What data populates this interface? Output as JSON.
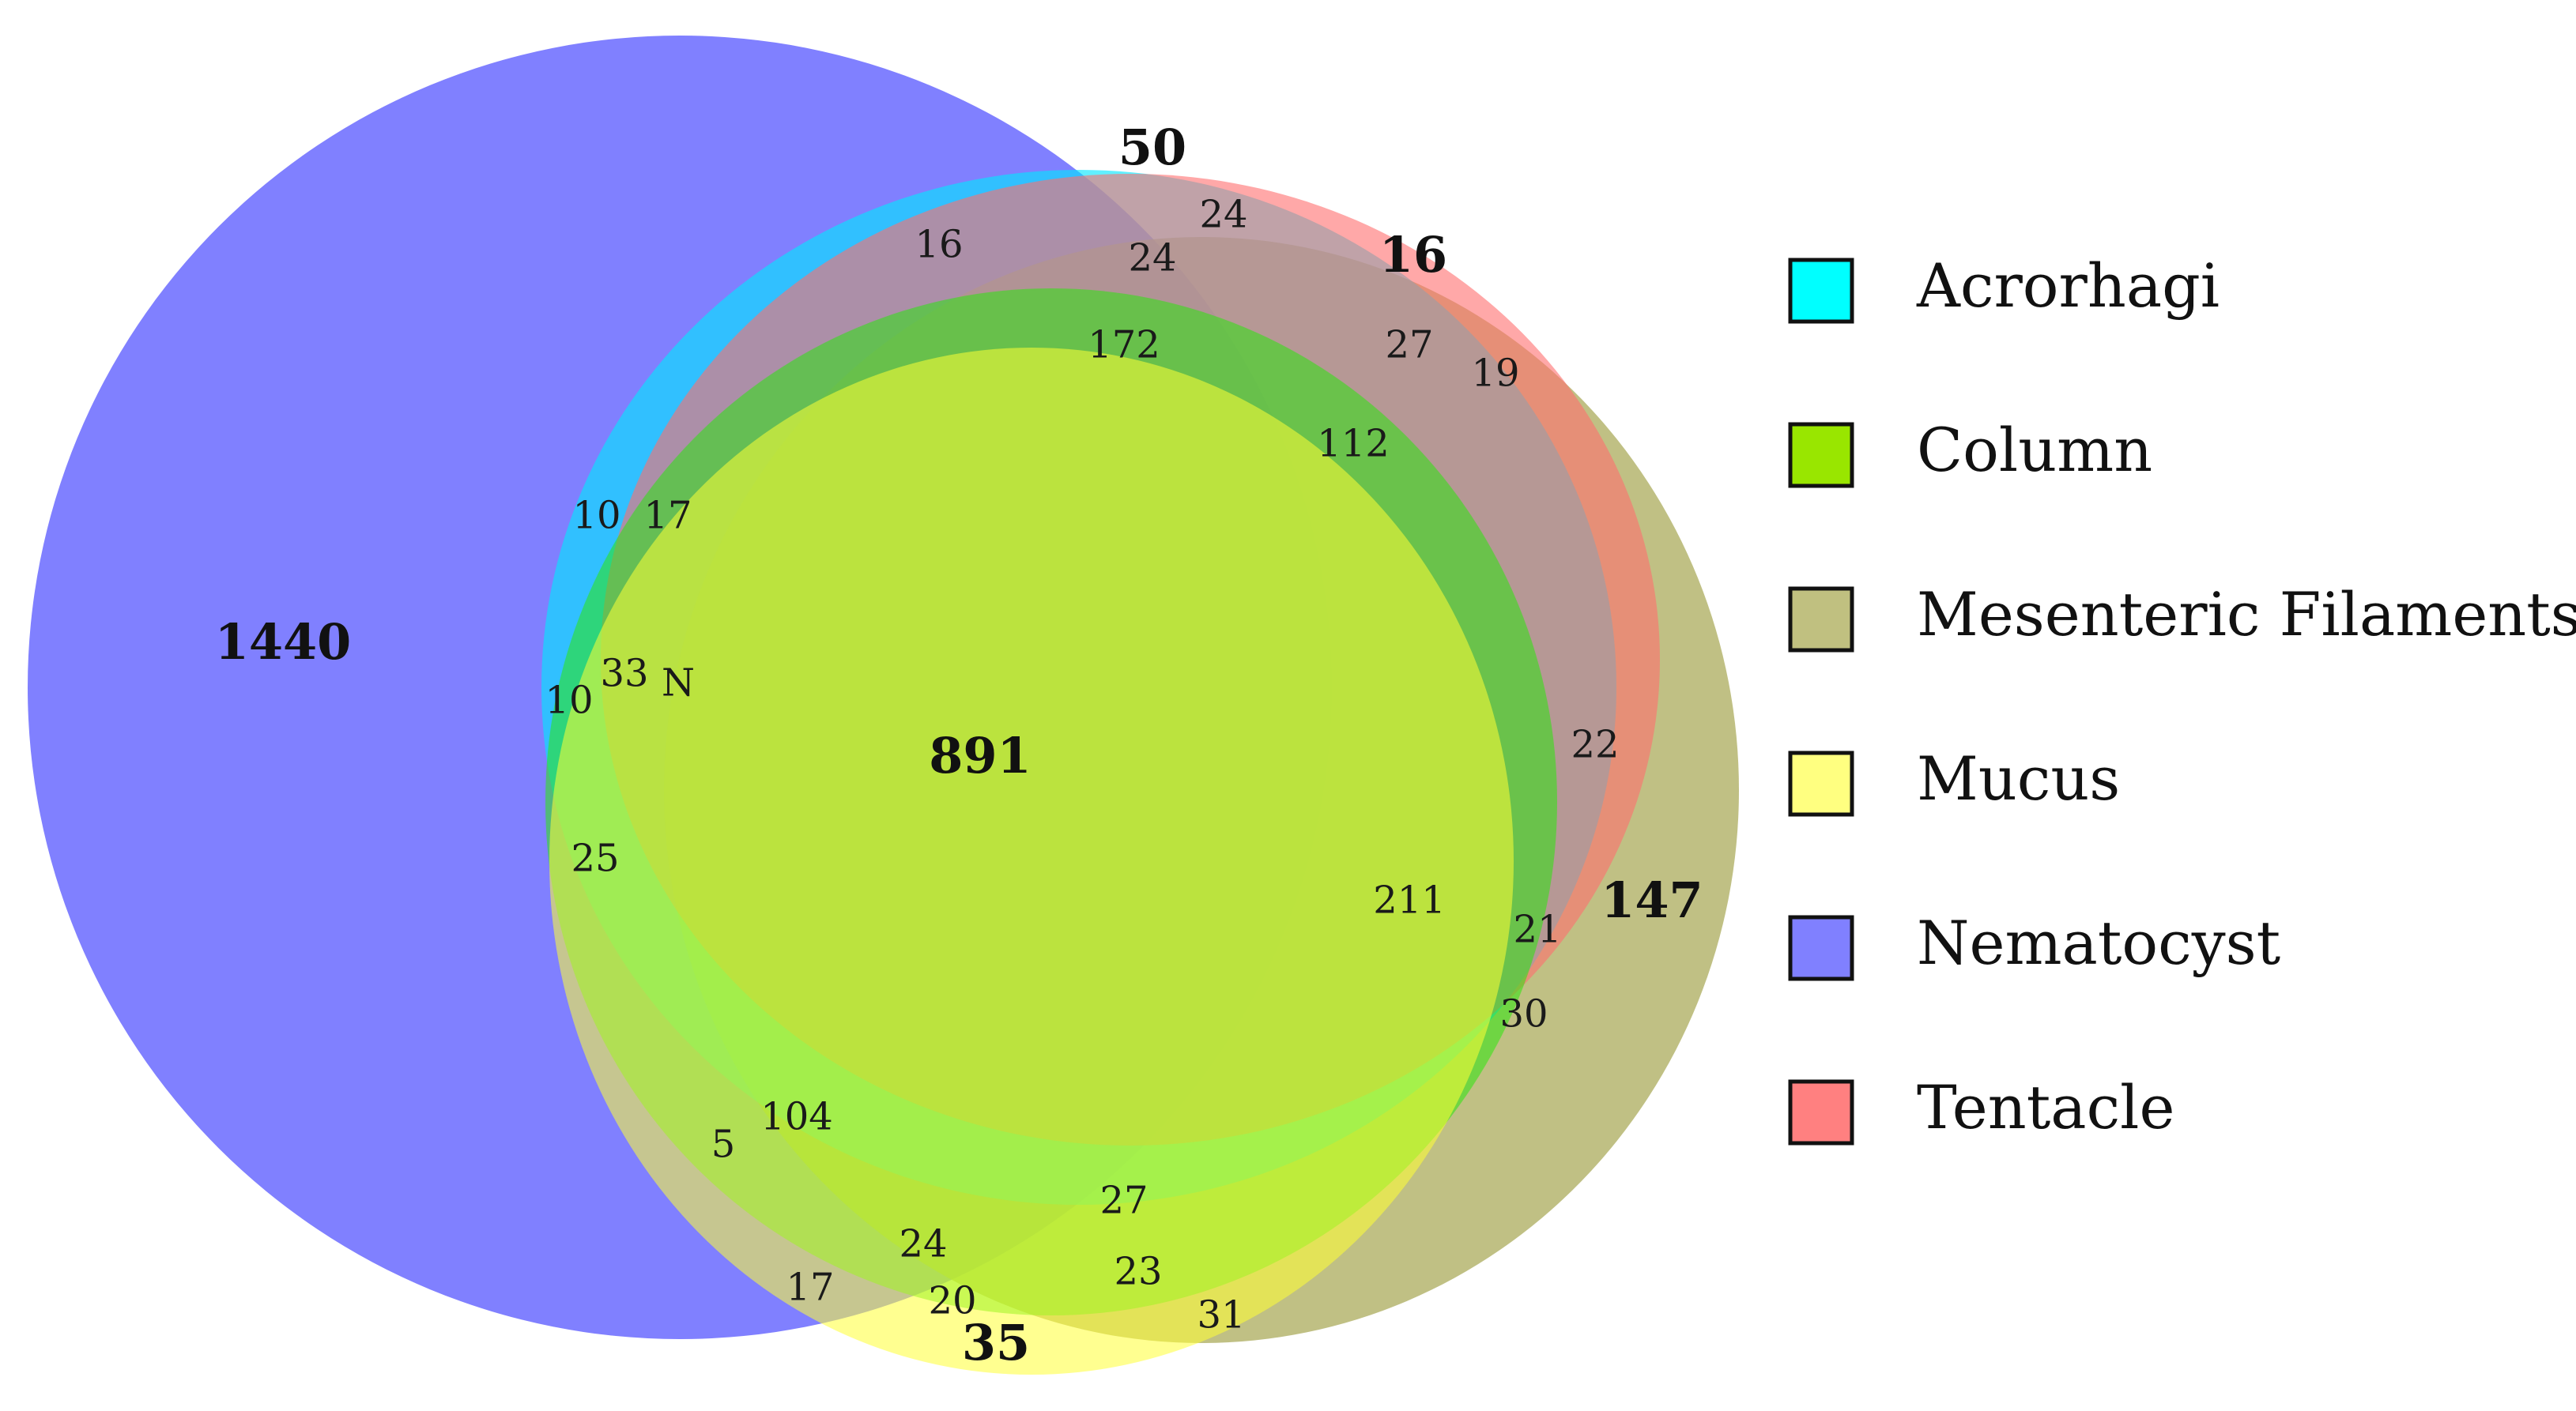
{
  "sets": [
    {
      "key": "nematocyst",
      "label": "Nematocyst",
      "color": "#8080ff",
      "opacity": 1.0
    },
    {
      "key": "mesenteric",
      "label": "Mesenteric Filaments",
      "color": "#a8a855",
      "opacity": 0.72
    },
    {
      "key": "acrorhagi",
      "label": "Acrorhagi",
      "color": "#00e6ff",
      "opacity": 0.62
    },
    {
      "key": "tentacle",
      "label": "Tentacle",
      "color": "#ff6e6e",
      "opacity": 0.6
    },
    {
      "key": "column",
      "label": "Column",
      "color": "#2ce60e",
      "opacity": 0.55
    },
    {
      "key": "mucus",
      "label": "Mucus",
      "color": "#ffff35",
      "opacity": 0.55
    }
  ],
  "legend": [
    {
      "label": "Acrorhagi",
      "color": "#00ffff"
    },
    {
      "label": "Column",
      "color": "#99e600"
    },
    {
      "label": "Mesenteric Filaments",
      "color": "#c0c080"
    },
    {
      "label": "Mucus",
      "color": "#ffff80"
    },
    {
      "label": "Nematocyst",
      "color": "#8080ff"
    },
    {
      "label": "Tentacle",
      "color": "#ff8080"
    }
  ],
  "regions": [
    {
      "id": "nematocyst-only",
      "label": "1440",
      "bold": true
    },
    {
      "id": "acrorhagi-only",
      "label": "50",
      "bold": true
    },
    {
      "id": "tentacle-only",
      "label": "16",
      "bold": true
    },
    {
      "id": "mesenteric-only",
      "label": "147",
      "bold": true
    },
    {
      "id": "mucus-only",
      "label": "35",
      "bold": true
    },
    {
      "id": "all-sets",
      "label": "891",
      "bold": true
    },
    {
      "id": "r-16",
      "label": "16",
      "bold": false
    },
    {
      "id": "r-24a",
      "label": "24",
      "bold": false
    },
    {
      "id": "r-24b",
      "label": "24",
      "bold": false
    },
    {
      "id": "r-172",
      "label": "172",
      "bold": false
    },
    {
      "id": "r-27a",
      "label": "27",
      "bold": false
    },
    {
      "id": "r-19",
      "label": "19",
      "bold": false
    },
    {
      "id": "r-112",
      "label": "112",
      "bold": false
    },
    {
      "id": "r-10a",
      "label": "10",
      "bold": false
    },
    {
      "id": "r-17a",
      "label": "17",
      "bold": false
    },
    {
      "id": "r-10b",
      "label": "10",
      "bold": false
    },
    {
      "id": "r-33",
      "label": "33",
      "bold": false
    },
    {
      "id": "r-n",
      "label": "N",
      "bold": false
    },
    {
      "id": "r-22",
      "label": "22",
      "bold": false
    },
    {
      "id": "r-25",
      "label": "25",
      "bold": false
    },
    {
      "id": "r-211",
      "label": "211",
      "bold": false
    },
    {
      "id": "r-21",
      "label": "21",
      "bold": false
    },
    {
      "id": "r-30",
      "label": "30",
      "bold": false
    },
    {
      "id": "r-104",
      "label": "104",
      "bold": false
    },
    {
      "id": "r-5",
      "label": "5",
      "bold": false
    },
    {
      "id": "r-27b",
      "label": "27",
      "bold": false
    },
    {
      "id": "r-24c",
      "label": "24",
      "bold": false
    },
    {
      "id": "r-23",
      "label": "23",
      "bold": false
    },
    {
      "id": "r-17b",
      "label": "17",
      "bold": false
    },
    {
      "id": "r-20",
      "label": "20",
      "bold": false
    },
    {
      "id": "r-31",
      "label": "31",
      "bold": false
    }
  ]
}
